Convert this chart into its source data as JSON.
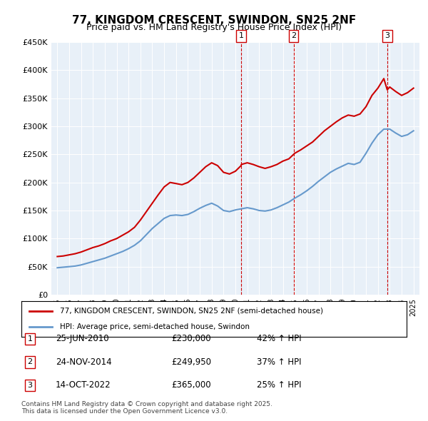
{
  "title": "77, KINGDOM CRESCENT, SWINDON, SN25 2NF",
  "subtitle": "Price paid vs. HM Land Registry's House Price Index (HPI)",
  "legend_line1": "77, KINGDOM CRESCENT, SWINDON, SN25 2NF (semi-detached house)",
  "legend_line2": "HPI: Average price, semi-detached house, Swindon",
  "footer": "Contains HM Land Registry data © Crown copyright and database right 2025.\nThis data is licensed under the Open Government Licence v3.0.",
  "ylim": [
    0,
    450000
  ],
  "yticks": [
    0,
    50000,
    100000,
    150000,
    200000,
    250000,
    300000,
    350000,
    400000,
    450000
  ],
  "ytick_labels": [
    "£0",
    "£50K",
    "£100K",
    "£150K",
    "£200K",
    "£250K",
    "£300K",
    "£350K",
    "£400K",
    "£450K"
  ],
  "xlim_start": 1994.5,
  "xlim_end": 2025.5,
  "sale_events": [
    {
      "num": 1,
      "date": "25-JUN-2010",
      "price": 230000,
      "year": 2010.48,
      "pct": "42%",
      "dir": "↑"
    },
    {
      "num": 2,
      "date": "24-NOV-2014",
      "price": 249950,
      "year": 2014.9,
      "pct": "37%",
      "dir": "↑"
    },
    {
      "num": 3,
      "date": "14-OCT-2022",
      "price": 365000,
      "year": 2022.79,
      "pct": "25%",
      "dir": "↑"
    }
  ],
  "table_rows": [
    {
      "num": 1,
      "date": "25-JUN-2010",
      "price": "£230,000",
      "pct": "42% ↑ HPI"
    },
    {
      "num": 2,
      "date": "24-NOV-2014",
      "price": "£249,950",
      "pct": "37% ↑ HPI"
    },
    {
      "num": 3,
      "date": "14-OCT-2022",
      "price": "£365,000",
      "pct": "25% ↑ HPI"
    }
  ],
  "red_color": "#cc0000",
  "blue_color": "#6699cc",
  "bg_color": "#e8f0f8",
  "property_data": {
    "years": [
      1995.0,
      1995.5,
      1996.0,
      1996.5,
      1997.0,
      1997.5,
      1998.0,
      1998.5,
      1999.0,
      1999.5,
      2000.0,
      2000.5,
      2001.0,
      2001.5,
      2002.0,
      2002.5,
      2003.0,
      2003.5,
      2004.0,
      2004.5,
      2005.0,
      2005.5,
      2006.0,
      2006.5,
      2007.0,
      2007.5,
      2008.0,
      2008.5,
      2009.0,
      2009.5,
      2010.0,
      2010.48,
      2010.5,
      2011.0,
      2011.5,
      2012.0,
      2012.5,
      2013.0,
      2013.5,
      2014.0,
      2014.5,
      2014.9,
      2015.0,
      2015.5,
      2016.0,
      2016.5,
      2017.0,
      2017.5,
      2018.0,
      2018.5,
      2019.0,
      2019.5,
      2020.0,
      2020.5,
      2021.0,
      2021.5,
      2022.0,
      2022.5,
      2022.79,
      2023.0,
      2023.5,
      2024.0,
      2024.5,
      2025.0
    ],
    "values": [
      68000,
      69000,
      71000,
      73000,
      76000,
      80000,
      84000,
      87000,
      91000,
      96000,
      100000,
      106000,
      112000,
      120000,
      133000,
      148000,
      163000,
      178000,
      192000,
      200000,
      198000,
      196000,
      200000,
      208000,
      218000,
      228000,
      235000,
      230000,
      218000,
      215000,
      220000,
      230000,
      232000,
      235000,
      232000,
      228000,
      225000,
      228000,
      232000,
      238000,
      242000,
      249950,
      252000,
      258000,
      265000,
      272000,
      282000,
      292000,
      300000,
      308000,
      315000,
      320000,
      318000,
      322000,
      335000,
      355000,
      368000,
      385000,
      365000,
      370000,
      362000,
      355000,
      360000,
      368000
    ]
  },
  "hpi_data": {
    "years": [
      1995.0,
      1995.5,
      1996.0,
      1996.5,
      1997.0,
      1997.5,
      1998.0,
      1998.5,
      1999.0,
      1999.5,
      2000.0,
      2000.5,
      2001.0,
      2001.5,
      2002.0,
      2002.5,
      2003.0,
      2003.5,
      2004.0,
      2004.5,
      2005.0,
      2005.5,
      2006.0,
      2006.5,
      2007.0,
      2007.5,
      2008.0,
      2008.5,
      2009.0,
      2009.5,
      2010.0,
      2010.5,
      2011.0,
      2011.5,
      2012.0,
      2012.5,
      2013.0,
      2013.5,
      2014.0,
      2014.5,
      2015.0,
      2015.5,
      2016.0,
      2016.5,
      2017.0,
      2017.5,
      2018.0,
      2018.5,
      2019.0,
      2019.5,
      2020.0,
      2020.5,
      2021.0,
      2021.5,
      2022.0,
      2022.5,
      2023.0,
      2023.5,
      2024.0,
      2024.5,
      2025.0
    ],
    "values": [
      48000,
      49000,
      50000,
      51000,
      53000,
      56000,
      59000,
      62000,
      65000,
      69000,
      73000,
      77000,
      82000,
      88000,
      96000,
      107000,
      118000,
      127000,
      136000,
      141000,
      142000,
      141000,
      143000,
      148000,
      154000,
      159000,
      163000,
      158000,
      150000,
      148000,
      151000,
      153000,
      155000,
      153000,
      150000,
      149000,
      151000,
      155000,
      160000,
      165000,
      172000,
      178000,
      185000,
      193000,
      202000,
      210000,
      218000,
      224000,
      229000,
      234000,
      232000,
      236000,
      252000,
      270000,
      285000,
      295000,
      295000,
      288000,
      282000,
      285000,
      292000
    ]
  }
}
